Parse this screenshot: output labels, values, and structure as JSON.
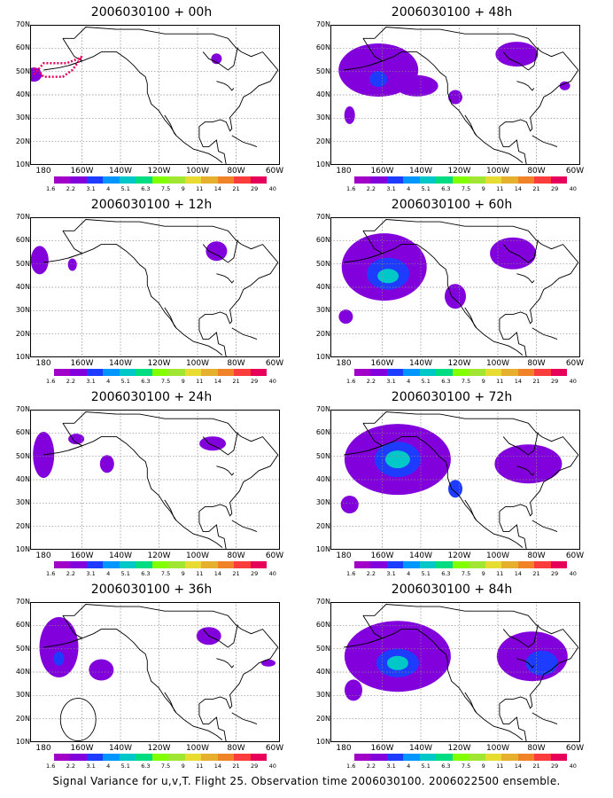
{
  "caption": "Signal Variance for u,v,T. Flight 25. Observation time 2006030100. 2006022500 ensemble.",
  "y_ticks": [
    "70N",
    "60N",
    "50N",
    "40N",
    "30N",
    "20N",
    "10N"
  ],
  "x_ticks": [
    "180",
    "160W",
    "140W",
    "120W",
    "100W",
    "80W",
    "60W"
  ],
  "colorbar": {
    "labels": [
      "1.6",
      "2.2",
      "3.1",
      "4",
      "5.1",
      "6.3",
      "7.5",
      "9",
      "11",
      "14",
      "21",
      "29",
      "40"
    ],
    "colors": [
      "#a000c8",
      "#8200dc",
      "#1e3cff",
      "#0096ff",
      "#00c8c8",
      "#00dc82",
      "#82ff00",
      "#a0e632",
      "#e6dc32",
      "#e6af2d",
      "#f08228",
      "#fa3c3c",
      "#e6005a"
    ]
  },
  "map_colors": {
    "coast": "#000000",
    "grid": "#888888",
    "fill_low": "#a000c8",
    "fill_mid": "#8200dc",
    "fill_blue": "#1e3cff",
    "fill_lblue": "#0096ff",
    "fill_cyan": "#00c8c8",
    "flight_track": "#e6005a"
  },
  "panels": [
    {
      "title": "2006030100 + 00h",
      "col": 0,
      "row": 0
    },
    {
      "title": "2006030100 + 12h",
      "col": 0,
      "row": 1
    },
    {
      "title": "2006030100 + 24h",
      "col": 0,
      "row": 2
    },
    {
      "title": "2006030100 + 36h",
      "col": 0,
      "row": 3
    },
    {
      "title": "2006030100 + 48h",
      "col": 1,
      "row": 0
    },
    {
      "title": "2006030100 + 60h",
      "col": 1,
      "row": 1
    },
    {
      "title": "2006030100 + 72h",
      "col": 1,
      "row": 2
    },
    {
      "title": "2006030100 + 84h",
      "col": 1,
      "row": 3
    }
  ]
}
